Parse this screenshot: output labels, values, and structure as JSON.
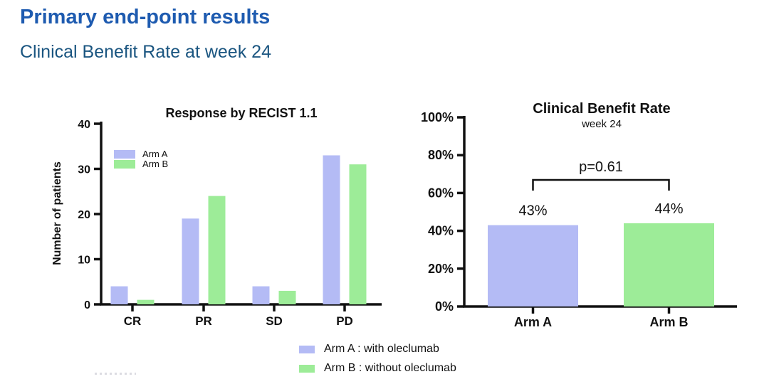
{
  "page": {
    "title": "Primary end-point results",
    "subtitle": "Clinical Benefit Rate at week 24",
    "title_color": "#1e5bb0",
    "subtitle_color": "#1a5580"
  },
  "chart_data": [
    {
      "type": "bar",
      "title": "Response by RECIST 1.1",
      "ylabel": "Number of patients",
      "xlabel": "",
      "ylim": [
        0,
        40
      ],
      "yticks": [
        0,
        10,
        20,
        30,
        40
      ],
      "ytick_labels": [
        "0",
        "10",
        "20",
        "30",
        "40"
      ],
      "categories": [
        "CR",
        "PR",
        "SD",
        "PD"
      ],
      "series": [
        {
          "name": "Arm A",
          "color": "#b4bbf5",
          "values": [
            4,
            19,
            4,
            33
          ]
        },
        {
          "name": "Arm B",
          "color": "#9dec98",
          "values": [
            1,
            24,
            3,
            31
          ]
        }
      ],
      "legend_position": "inside-top-left",
      "grid": false
    },
    {
      "type": "bar",
      "title": "Clinical Benefit Rate",
      "subtitle": "week 24",
      "ylim": [
        0,
        100
      ],
      "yticks": [
        0,
        20,
        40,
        60,
        80,
        100
      ],
      "ytick_labels": [
        "0%",
        "20%",
        "40%",
        "60%",
        "80%",
        "100%"
      ],
      "categories": [
        "Arm A",
        "Arm B"
      ],
      "series": [
        {
          "name": "Clinical Benefit Rate",
          "colors": [
            "#b4bbf5",
            "#9dec98"
          ],
          "values": [
            43,
            44
          ],
          "value_labels": [
            "43%",
            "44%"
          ]
        }
      ],
      "annotation": {
        "text": "p=0.61",
        "between": [
          "Arm A",
          "Arm B"
        ]
      },
      "grid": false
    }
  ],
  "footer_legend": [
    {
      "swatch_color": "#b4bbf5",
      "label": "Arm A : with oleclumab"
    },
    {
      "swatch_color": "#9dec98",
      "label": "Arm B : without oleclumab"
    }
  ]
}
